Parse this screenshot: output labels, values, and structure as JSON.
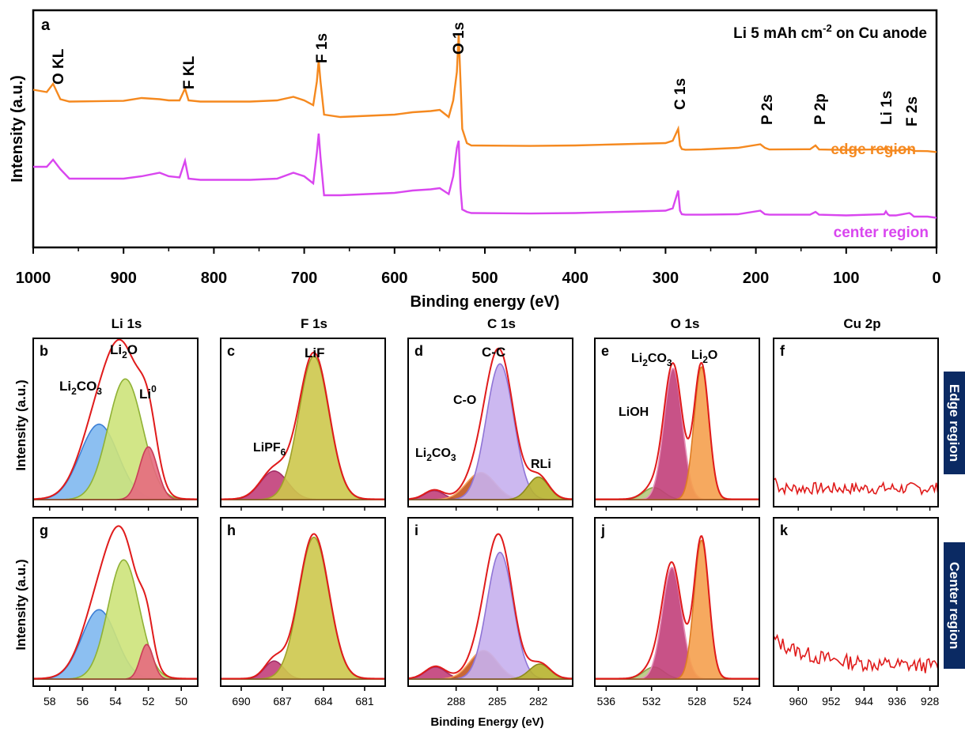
{
  "chart_data": [
    {
      "id": "a",
      "type": "line",
      "panel_letter": "a",
      "title": "Li  5 mAh cm-2 on Cu anode",
      "title_parts": {
        "base": "Li  5 mAh cm",
        "sup": "-2",
        "tail": " on Cu anode"
      },
      "xlabel": "Binding energy (eV)",
      "ylabel": "Intensity (a.u.)",
      "xlim": [
        1000,
        0
      ],
      "xticks": [
        1000,
        900,
        800,
        700,
        600,
        500,
        400,
        300,
        200,
        100,
        0
      ],
      "ylim": [
        0,
        100
      ],
      "series": [
        {
          "name": "edge region",
          "color": "#f5891f",
          "x": [
            1000,
            985,
            978,
            970,
            960,
            900,
            880,
            860,
            850,
            838,
            832,
            828,
            815,
            760,
            730,
            712,
            700,
            690,
            686,
            684,
            682,
            678,
            660,
            600,
            580,
            560,
            550,
            540,
            535,
            531,
            529,
            527,
            525,
            520,
            515,
            450,
            400,
            350,
            300,
            292,
            286,
            284,
            282,
            278,
            260,
            220,
            195,
            190,
            185,
            140,
            134,
            130,
            100,
            58,
            56,
            54,
            52,
            45,
            30,
            28,
            25,
            10,
            0
          ],
          "y": [
            66.5,
            65.5,
            69,
            62.5,
            61.5,
            61.8,
            63,
            62.5,
            62,
            62,
            67,
            62,
            61.5,
            61.5,
            62,
            63.5,
            62,
            60,
            70,
            79,
            70,
            56,
            55,
            56,
            57,
            57.5,
            58,
            55,
            62,
            74,
            90,
            70,
            50,
            44,
            43,
            42.8,
            43,
            43.5,
            44,
            45,
            50,
            43,
            41.5,
            41.2,
            41.3,
            42,
            43.5,
            42,
            41.3,
            41.4,
            43,
            41.3,
            41.1,
            41.4,
            42.5,
            41.3,
            40.8,
            40.8,
            41.5,
            41.2,
            40.7,
            40.6,
            40.2
          ]
        },
        {
          "name": "center region",
          "color": "#d946ef",
          "x": [
            1000,
            985,
            978,
            970,
            960,
            900,
            880,
            860,
            850,
            838,
            832,
            828,
            815,
            760,
            730,
            712,
            700,
            690,
            686,
            684,
            682,
            678,
            660,
            600,
            580,
            560,
            550,
            540,
            535,
            531,
            529,
            527,
            525,
            520,
            515,
            450,
            400,
            350,
            300,
            292,
            286,
            284,
            282,
            278,
            260,
            220,
            195,
            190,
            185,
            140,
            134,
            130,
            100,
            58,
            56,
            54,
            52,
            45,
            30,
            28,
            25,
            10,
            0
          ],
          "y": [
            34,
            34,
            37,
            33,
            29,
            29,
            30,
            31.5,
            30,
            29.5,
            36.5,
            29,
            28.5,
            28.5,
            29,
            31.5,
            30,
            27,
            40,
            48,
            38,
            22,
            22,
            23,
            24,
            24.5,
            25,
            22.5,
            30,
            42,
            45,
            25,
            16,
            15,
            14.5,
            14.3,
            14.5,
            15,
            15.5,
            16.5,
            24,
            15.5,
            14,
            13.8,
            13.8,
            14,
            15.5,
            14,
            13.8,
            13.8,
            15,
            13.8,
            13.5,
            14,
            15.2,
            14,
            13.5,
            13.5,
            14.5,
            14,
            13,
            13,
            12.5
          ]
        }
      ],
      "annotations": [
        "O KL",
        "F KL",
        "F 1s",
        "O 1s",
        "C 1s",
        "P 2s",
        "P 2p",
        "Li 1s",
        "F 2s"
      ]
    },
    {
      "id": "b",
      "panel_letter": "b",
      "type": "area",
      "title": "Li 1s",
      "ylabel": "Intensity (a.u.)",
      "xlim": [
        59,
        49
      ],
      "xticks": [],
      "baseline": 1.5,
      "envelope_color": "#e01b1b",
      "components": [
        {
          "name": "Li2CO3",
          "center": 55.0,
          "width": 1.15,
          "height": 50,
          "fill": "#7fb8ef",
          "line": "#3d7fd6"
        },
        {
          "name": "Li2O",
          "center": 53.4,
          "width": 1.05,
          "height": 80,
          "fill": "#cde37a",
          "line": "#8fb135"
        },
        {
          "name": "Li0",
          "center": 52.0,
          "width": 0.55,
          "height": 35,
          "fill": "#e56a80",
          "line": "#c93d58"
        }
      ],
      "labels": [
        {
          "text": "Li2CO3",
          "sub": "2",
          "tail": "CO",
          "sub2": "3"
        },
        {
          "text": "Li2O"
        },
        {
          "text": "Li0"
        }
      ]
    },
    {
      "id": "c",
      "panel_letter": "c",
      "type": "area",
      "title": "F 1s",
      "xlim": [
        691.5,
        679.5
      ],
      "xticks": [],
      "baseline": 1.5,
      "envelope_color": "#e01b1b",
      "components": [
        {
          "name": "LiPF6",
          "center": 687.6,
          "width": 1.0,
          "height": 19,
          "fill": "#c23f7a",
          "line": "#a42e68"
        },
        {
          "name": "LiF",
          "center": 684.7,
          "width": 1.1,
          "height": 95,
          "fill": "#cdc84c",
          "line": "#9fa029"
        }
      ]
    },
    {
      "id": "d",
      "panel_letter": "d",
      "type": "area",
      "title": "C 1s",
      "xlim": [
        291.5,
        279.5
      ],
      "xticks": [],
      "baseline": 1.5,
      "envelope_color": "#e01b1b",
      "components": [
        {
          "name": "Li2CO3",
          "center": 289.6,
          "width": 0.7,
          "height": 6,
          "fill": "#c23f7a",
          "line": "#a42e68"
        },
        {
          "name": "C-O",
          "center": 286.2,
          "width": 1.05,
          "height": 18,
          "fill": "#c2571f",
          "line": "#f5a05a"
        },
        {
          "name": "C-C",
          "center": 284.8,
          "width": 1.0,
          "height": 90,
          "fill": "#c6b0ee",
          "line": "#8f74d6"
        },
        {
          "name": "RLi",
          "center": 282.0,
          "width": 0.75,
          "height": 15,
          "fill": "#b7b32e",
          "line": "#8d8a1e"
        }
      ]
    },
    {
      "id": "e",
      "panel_letter": "e",
      "type": "area",
      "title": "O 1s",
      "xlim": [
        537,
        522.5
      ],
      "xticks": [],
      "baseline": 1.5,
      "envelope_color": "#e01b1b",
      "components": [
        {
          "name": "LiOH",
          "center": 531.8,
          "width": 0.9,
          "height": 8,
          "fill": "#b7c97e",
          "line": "#88a04a"
        },
        {
          "name": "Li2CO3",
          "center": 530.1,
          "width": 0.8,
          "height": 87,
          "fill": "#c23f7a",
          "line": "#e48fb8"
        },
        {
          "name": "Li2O",
          "center": 527.6,
          "width": 0.65,
          "height": 88,
          "fill": "#f5a04e",
          "line": "#de7c24"
        }
      ]
    },
    {
      "id": "f",
      "panel_letter": "f",
      "type": "line",
      "title": "Cu 2p",
      "xlim": [
        966,
        926
      ],
      "xticks": [],
      "noise_seed": 7,
      "noise_level": 8,
      "line_color": "#e01b1b"
    },
    {
      "id": "g",
      "panel_letter": "g",
      "type": "area",
      "ylabel": "Intensity (a.u.)",
      "xlim": [
        59,
        49
      ],
      "xticks": [
        58,
        56,
        54,
        52,
        50
      ],
      "baseline": 1.5,
      "envelope_color": "#e01b1b",
      "components": [
        {
          "name": "Li2CO3",
          "center": 55.0,
          "width": 1.05,
          "height": 46,
          "fill": "#7fb8ef",
          "line": "#3d7fd6"
        },
        {
          "name": "Li2O",
          "center": 53.5,
          "width": 0.95,
          "height": 79,
          "fill": "#cde37a",
          "line": "#8fb135"
        },
        {
          "name": "Li0",
          "center": 52.1,
          "width": 0.4,
          "height": 23,
          "fill": "#e56a80",
          "line": "#c93d58"
        }
      ]
    },
    {
      "id": "h",
      "panel_letter": "h",
      "type": "area",
      "xlim": [
        691.5,
        679.5
      ],
      "xticks": [
        690,
        687,
        684,
        681
      ],
      "baseline": 1.5,
      "envelope_color": "#e01b1b",
      "components": [
        {
          "name": "LiPF6",
          "center": 687.6,
          "width": 0.7,
          "height": 12,
          "fill": "#c23f7a",
          "line": "#a42e68"
        },
        {
          "name": "LiF",
          "center": 684.7,
          "width": 1.1,
          "height": 94,
          "fill": "#cdc84c",
          "line": "#9fa029"
        }
      ]
    },
    {
      "id": "i",
      "panel_letter": "i",
      "type": "area",
      "xlim": [
        291.5,
        279.5
      ],
      "xticks": [
        288,
        285,
        282
      ],
      "xlabel": "Binding Energy (eV)",
      "baseline": 1.5,
      "envelope_color": "#e01b1b",
      "components": [
        {
          "name": "Li2CO3",
          "center": 289.5,
          "width": 0.75,
          "height": 8,
          "fill": "#c23f7a",
          "line": "#a42e68"
        },
        {
          "name": "C-O",
          "center": 286.0,
          "width": 1.0,
          "height": 19,
          "fill": "#c2571f",
          "line": "#f5a05a"
        },
        {
          "name": "C-C",
          "center": 284.8,
          "width": 0.95,
          "height": 84,
          "fill": "#c6b0ee",
          "line": "#8f74d6"
        },
        {
          "name": "RLi",
          "center": 281.9,
          "width": 0.75,
          "height": 10,
          "fill": "#b7b32e",
          "line": "#8d8a1e"
        }
      ]
    },
    {
      "id": "j",
      "panel_letter": "j",
      "type": "area",
      "xlim": [
        537,
        522.5
      ],
      "xticks": [
        536,
        532,
        528,
        524
      ],
      "baseline": 1.5,
      "envelope_color": "#e01b1b",
      "components": [
        {
          "name": "LiOH",
          "center": 531.8,
          "width": 0.9,
          "height": 8,
          "fill": "#b7c97e",
          "line": "#88a04a"
        },
        {
          "name": "Li2CO3",
          "center": 530.2,
          "width": 0.85,
          "height": 74,
          "fill": "#c23f7a",
          "line": "#e48fb8"
        },
        {
          "name": "Li2O",
          "center": 527.6,
          "width": 0.65,
          "height": 92,
          "fill": "#f5a04e",
          "line": "#de7c24"
        }
      ]
    },
    {
      "id": "k",
      "panel_letter": "k",
      "type": "line",
      "xlim": [
        966,
        926
      ],
      "xticks": [
        960,
        952,
        944,
        936,
        928
      ],
      "noise_seed": 13,
      "noise_level": 10,
      "line_color": "#e01b1b",
      "decay": true
    }
  ],
  "row_labels": {
    "top": "Edge region",
    "bottom": "Center region",
    "bg": "#0b2a63"
  },
  "text": {
    "panel_a": {
      "letter": "a",
      "title_base": "Li  5 mAh cm",
      "title_sup": "-2",
      "title_tail": " on Cu anode",
      "ylabel": "Intensity (a.u.)",
      "xlabel": "Binding energy (eV)",
      "edge_label": "edge region",
      "center_label": "center region",
      "peaks": {
        "OKL": "O KL",
        "FKL": "F KL",
        "F1s": "F 1s",
        "O1s": "O 1s",
        "C1s": "C 1s",
        "P2s": "P 2s",
        "P2p": "P 2p",
        "Li1s": "Li 1s",
        "F2s": "F 2s"
      },
      "xtick_labels": [
        "1000",
        "900",
        "800",
        "700",
        "600",
        "500",
        "400",
        "300",
        "200",
        "100",
        "0"
      ]
    },
    "col_titles": [
      "Li 1s",
      "F 1s",
      "C 1s",
      "O 1s",
      "Cu 2p"
    ],
    "letters": [
      "b",
      "c",
      "d",
      "e",
      "f",
      "g",
      "h",
      "i",
      "j",
      "k"
    ],
    "ylabel_small": "Intensity (a.u.)",
    "xlabel_small": "Binding Energy (eV)",
    "b_labels": {
      "li2co3_li": "Li",
      "li2co3_sub2": "2",
      "li2co3_co": "CO",
      "li2co3_sub3": "3",
      "li2o_li": "Li",
      "li2o_sub": "2",
      "li2o_o": "O",
      "li0_li": "Li",
      "li0_sup": "0"
    },
    "c_labels": {
      "lipf6_base": "LiPF",
      "lipf6_sub": "6",
      "lif": "LiF"
    },
    "d_labels": {
      "cc": "C-C",
      "co": "C-O",
      "li2co3_li": "Li",
      "li2co3_sub2": "2",
      "li2co3_co": "CO",
      "li2co3_sub3": "3",
      "rli": "RLi"
    },
    "e_labels": {
      "li2co3_li": "Li",
      "li2co3_sub2": "2",
      "li2co3_co": "CO",
      "li2co3_sub3": "3",
      "li2o_li": "Li",
      "li2o_sub": "2",
      "li2o_o": "O",
      "lioh": "LiOH"
    },
    "g_ticks": [
      "58",
      "56",
      "54",
      "52",
      "50"
    ],
    "h_ticks": [
      "690",
      "687",
      "684",
      "681"
    ],
    "i_ticks": [
      "288",
      "285",
      "282"
    ],
    "j_ticks": [
      "536",
      "532",
      "528",
      "524"
    ],
    "k_ticks": [
      "960",
      "952",
      "944",
      "936",
      "928"
    ]
  }
}
